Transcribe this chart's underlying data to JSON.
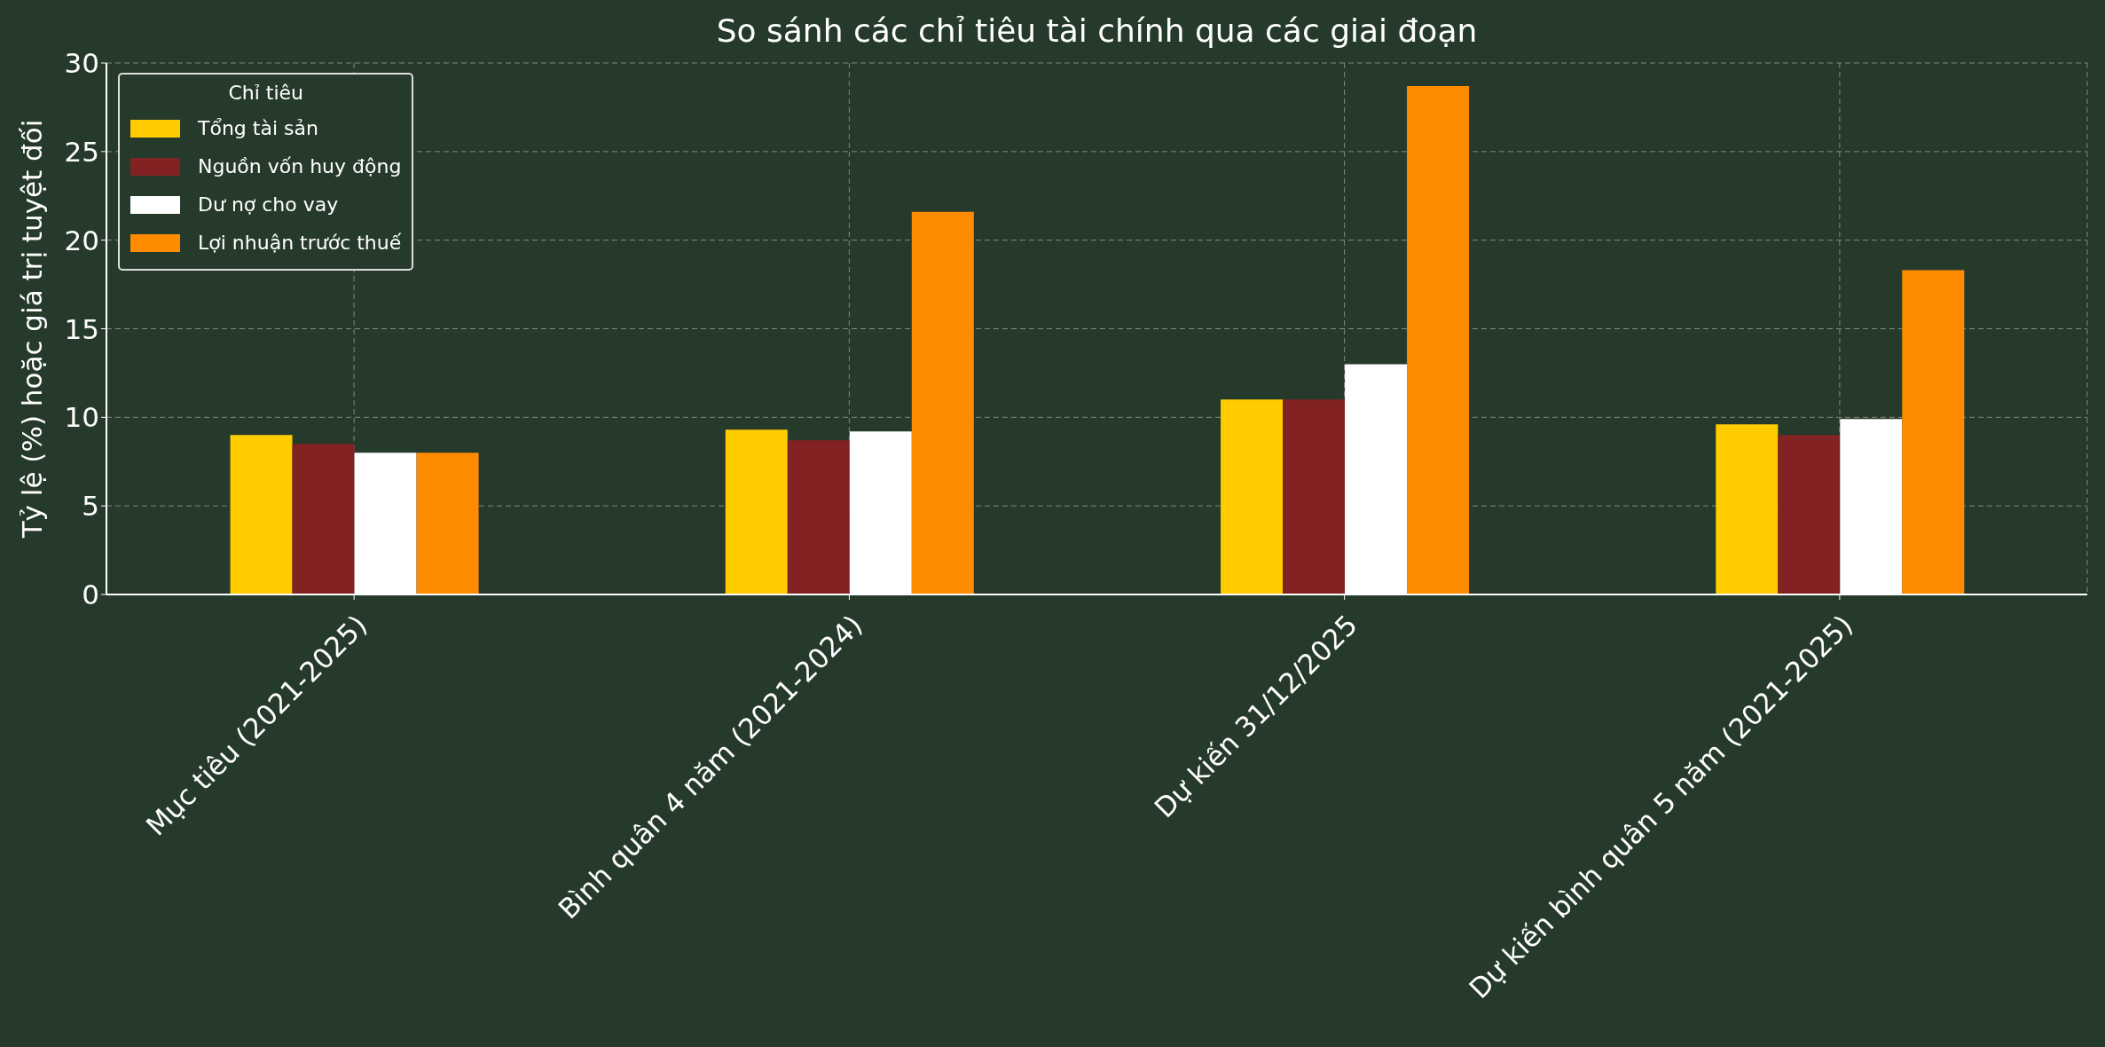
{
  "chart_data": {
    "type": "bar",
    "title": "So sánh các chỉ tiêu tài chính qua các giai đoạn",
    "ylabel": "Tỷ lệ (%) hoặc giá trị tuyệt đối",
    "legend_title": "Chỉ tiêu",
    "categories": [
      "Mục tiêu (2021-2025)",
      "Bình quân 4 năm (2021-2024)",
      "Dự kiến 31/12/2025",
      "Dự kiến bình quân 5 năm (2021-2025)"
    ],
    "series": [
      {
        "name": "Tổng tài sản",
        "color": "#ffcc00",
        "values": [
          9,
          9.3,
          11,
          9.6
        ]
      },
      {
        "name": "Nguồn vốn huy động",
        "color": "#822222",
        "values": [
          8.5,
          8.7,
          11,
          9
        ]
      },
      {
        "name": "Dư nợ cho vay",
        "color": "#ffffff",
        "values": [
          8,
          9.2,
          13,
          9.9
        ]
      },
      {
        "name": "Lợi nhuận trước thuế",
        "color": "#ff8c00",
        "values": [
          8,
          21.6,
          28.7,
          18.3
        ]
      }
    ],
    "ylim": [
      0,
      30
    ],
    "yticks": [
      0,
      5,
      10,
      15,
      20,
      25,
      30
    ],
    "grid": true,
    "legend": "top left"
  }
}
